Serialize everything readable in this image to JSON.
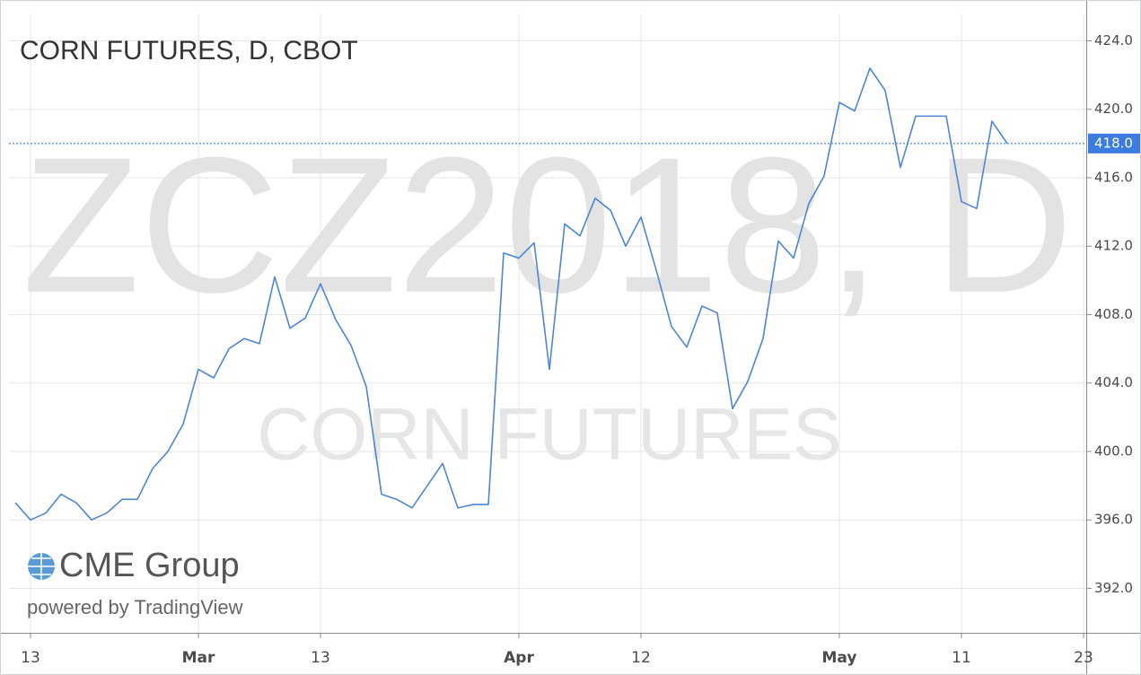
{
  "chart_data": {
    "type": "line",
    "title": "CORN FUTURES, D, CBOT",
    "watermark": "ZCZ2018, D",
    "watermark_subtitle": "CORN FUTURES",
    "brand": "CME Group",
    "powered_by": "powered by TradingView",
    "categories": [
      null,
      "13",
      null,
      null,
      null,
      null,
      null,
      null,
      null,
      null,
      null,
      null,
      "Mar",
      null,
      null,
      null,
      null,
      null,
      null,
      null,
      "13",
      null,
      null,
      null,
      null,
      null,
      null,
      null,
      null,
      null,
      null,
      null,
      null,
      "Apr",
      null,
      null,
      null,
      null,
      null,
      null,
      null,
      "12",
      null,
      null,
      null,
      null,
      null,
      null,
      null,
      null,
      null,
      null,
      null,
      null,
      "May",
      null,
      null,
      null,
      null,
      null,
      null,
      null,
      "11",
      null,
      null,
      null,
      null,
      null,
      null,
      null,
      "23"
    ],
    "series": [
      {
        "name": "ZCZ2018",
        "color": "#4e84d9",
        "values": [
          397.0,
          396.0,
          396.4,
          397.5,
          397.0,
          396.0,
          396.4,
          397.2,
          397.2,
          399.0,
          400.0,
          401.6,
          404.8,
          404.3,
          406.0,
          406.6,
          406.3,
          410.2,
          407.2,
          407.8,
          409.8,
          407.7,
          406.2,
          403.8,
          397.5,
          397.2,
          396.7,
          398.0,
          399.3,
          396.7,
          396.9,
          396.9,
          411.6,
          411.3,
          412.2,
          404.8,
          413.3,
          412.6,
          414.8,
          414.1,
          412.0,
          413.7,
          410.6,
          407.3,
          406.1,
          408.5,
          408.1,
          402.5,
          404.1,
          406.6,
          412.3,
          411.3,
          414.5,
          416.1,
          420.4,
          419.9,
          422.4,
          421.1,
          416.6,
          419.6,
          419.6,
          419.6,
          414.6,
          414.2,
          419.3,
          418.0,
          null,
          null,
          null,
          null,
          null
        ]
      }
    ],
    "last_price": {
      "value": 418,
      "label": "418.0"
    },
    "ylim": [
      389.4,
      425.6
    ],
    "yticks": [
      {
        "value": 392,
        "label": "392.0"
      },
      {
        "value": 396,
        "label": "396.0"
      },
      {
        "value": 400,
        "label": "400.0"
      },
      {
        "value": 404,
        "label": "404.0"
      },
      {
        "value": 408,
        "label": "408.0"
      },
      {
        "value": 412,
        "label": "412.0"
      },
      {
        "value": 416,
        "label": "416.0"
      },
      {
        "value": 420,
        "label": "420.0"
      },
      {
        "value": 424,
        "label": "424.0"
      }
    ],
    "grid": true
  }
}
